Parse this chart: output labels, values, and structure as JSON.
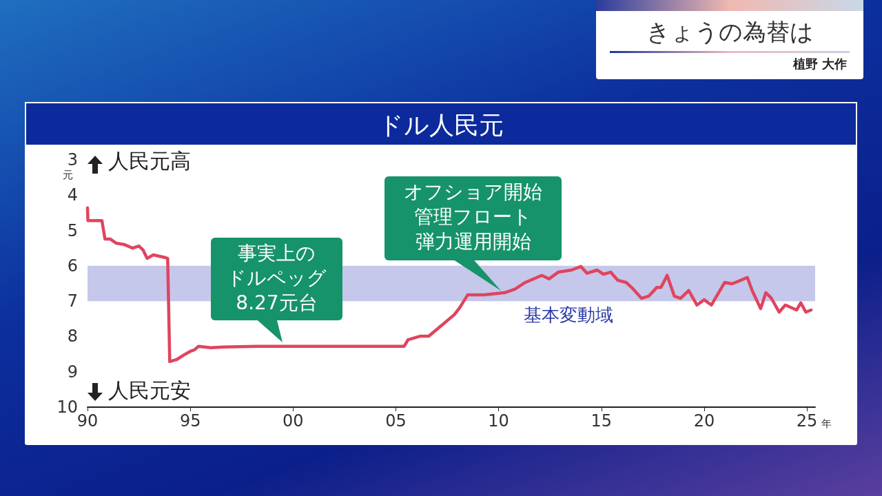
{
  "chart_data": {
    "type": "line",
    "title": "ドル人民元",
    "xlabel": "年",
    "ylabel": "元",
    "x": [
      1990,
      1990.02,
      1990.7,
      1990.85,
      1991.1,
      1991.4,
      1991.8,
      1992.2,
      1992.5,
      1992.7,
      1992.9,
      1993.2,
      1993.8,
      1993.9,
      1994.0,
      1994.35,
      1994.7,
      1995.0,
      1995.2,
      1995.4,
      1996.0,
      1996.6,
      1998.2,
      2005.4,
      2005.6,
      2006.2,
      2006.6,
      2007.2,
      2007.85,
      2008.1,
      2008.5,
      2009.3,
      2010.3,
      2010.8,
      2011.3,
      2012.1,
      2012.45,
      2012.9,
      2013.55,
      2014.0,
      2014.3,
      2014.8,
      2015.1,
      2015.45,
      2015.8,
      2016.2,
      2016.55,
      2016.95,
      2017.3,
      2017.7,
      2017.9,
      2018.2,
      2018.55,
      2018.85,
      2019.25,
      2019.65,
      2020.0,
      2020.35,
      2021.0,
      2021.35,
      2021.7,
      2022.1,
      2022.35,
      2022.75,
      2023.0,
      2023.25,
      2023.65,
      2023.95,
      2024.5,
      2024.7,
      2024.95,
      2025.2
    ],
    "series": [
      {
        "color": "#e0445f",
        "values": [
          4.36,
          4.72,
          4.72,
          5.24,
          5.24,
          5.36,
          5.4,
          5.5,
          5.44,
          5.55,
          5.79,
          5.69,
          5.77,
          5.79,
          8.71,
          8.65,
          8.52,
          8.42,
          8.38,
          8.28,
          8.32,
          8.3,
          8.28,
          8.28,
          8.09,
          7.99,
          7.99,
          7.7,
          7.38,
          7.19,
          6.82,
          6.82,
          6.76,
          6.66,
          6.47,
          6.27,
          6.37,
          6.18,
          6.12,
          6.02,
          6.21,
          6.12,
          6.24,
          6.18,
          6.41,
          6.47,
          6.66,
          6.92,
          6.86,
          6.61,
          6.61,
          6.27,
          6.86,
          6.92,
          6.7,
          7.11,
          6.96,
          7.11,
          6.47,
          6.51,
          6.43,
          6.33,
          6.72,
          7.21,
          6.76,
          6.9,
          7.31,
          7.11,
          7.25,
          7.05,
          7.31,
          7.25
        ]
      }
    ],
    "xlim": [
      1990,
      2025.4
    ],
    "xticks": [
      {
        "value": 1990,
        "label": "90"
      },
      {
        "value": 1995,
        "label": "95"
      },
      {
        "value": 2000,
        "label": "00"
      },
      {
        "value": 2005,
        "label": "05"
      },
      {
        "value": 2010,
        "label": "10"
      },
      {
        "value": 2015,
        "label": "15"
      },
      {
        "value": 2020,
        "label": "20"
      },
      {
        "value": 2025,
        "label": "25"
      }
    ],
    "ylim": [
      10,
      3
    ],
    "yticks": [
      3,
      4,
      5,
      6,
      7,
      8,
      9,
      10
    ],
    "bands": [
      {
        "axis": "y",
        "from": 6,
        "to": 7,
        "label": "基本変動域",
        "color": "#c5c8ea"
      }
    ],
    "annotations": [
      "人民元高",
      "人民元安",
      "事実上のドルペッグ8.27元台",
      "オフショア開始管理フロート弾力運用開始",
      "きょうの為替は",
      "植野 大作"
    ],
    "grid": false,
    "marker": "none",
    "line_style": "solid"
  }
}
